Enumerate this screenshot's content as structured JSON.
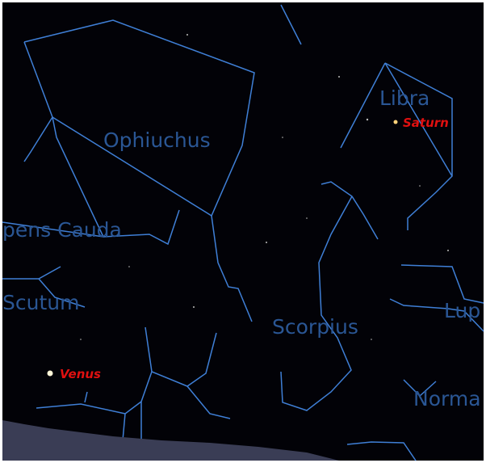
{
  "constellations": [
    "Libra",
    "Ophiuchus",
    "pens Cauda",
    "Scutum",
    "Scorpius",
    "Lup",
    "Norma"
  ],
  "planets": [
    "Saturn",
    "Venus"
  ]
}
